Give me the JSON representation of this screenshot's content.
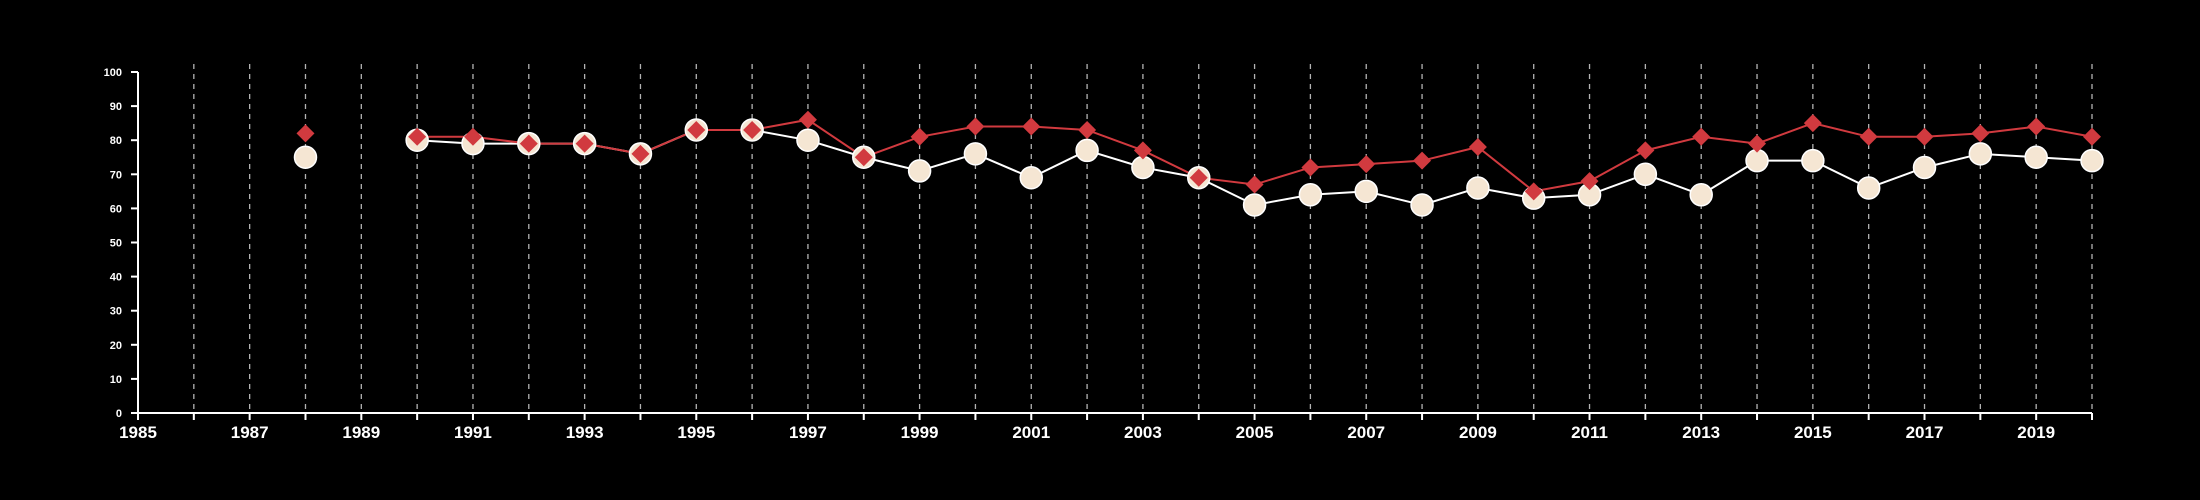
{
  "chart_data": {
    "type": "line",
    "title": "",
    "xlabel": "",
    "ylabel": "",
    "xlim": [
      1985,
      2020
    ],
    "ylim": [
      0,
      100
    ],
    "x_ticks": [
      1985,
      1987,
      1989,
      1991,
      1993,
      1995,
      1997,
      1999,
      2001,
      2003,
      2005,
      2007,
      2009,
      2011,
      2013,
      2015,
      2017,
      2019
    ],
    "y_ticks": [
      0,
      10,
      20,
      30,
      40,
      50,
      60,
      70,
      80,
      90,
      100
    ],
    "grid": "vertical dashed at every year",
    "colors": {
      "background": "#000000",
      "axis": "#ffffff",
      "grid": "#b3b3b3",
      "series_circle_fill": "#f5e6d3",
      "series_circle_line": "#ffffff",
      "series_diamond": "#d13a3f"
    },
    "series": [
      {
        "marker": "circle",
        "x": [
          1988,
          1990,
          1991,
          1992,
          1993,
          1994,
          1995,
          1996,
          1997,
          1998,
          1999,
          2000,
          2001,
          2002,
          2003,
          2004,
          2005,
          2006,
          2007,
          2008,
          2009,
          2010,
          2011,
          2012,
          2013,
          2014,
          2015,
          2016,
          2017,
          2018,
          2019,
          2020
        ],
        "values": [
          75,
          80,
          79,
          79,
          79,
          76,
          83,
          83,
          80,
          75,
          71,
          76,
          69,
          77,
          72,
          69,
          61,
          64,
          65,
          61,
          66,
          63,
          64,
          70,
          64,
          74,
          74,
          66,
          72,
          76,
          75,
          74
        ]
      },
      {
        "marker": "diamond",
        "x": [
          1988,
          1990,
          1991,
          1992,
          1993,
          1994,
          1995,
          1996,
          1997,
          1998,
          1999,
          2000,
          2001,
          2002,
          2003,
          2004,
          2005,
          2006,
          2007,
          2008,
          2009,
          2010,
          2011,
          2012,
          2013,
          2014,
          2015,
          2016,
          2017,
          2018,
          2019,
          2020
        ],
        "values": [
          82,
          81,
          81,
          79,
          79,
          76,
          83,
          83,
          86,
          75,
          81,
          84,
          84,
          83,
          77,
          69,
          67,
          72,
          73,
          74,
          78,
          65,
          68,
          77,
          81,
          79,
          85,
          81,
          81,
          82,
          84,
          81
        ]
      }
    ]
  }
}
